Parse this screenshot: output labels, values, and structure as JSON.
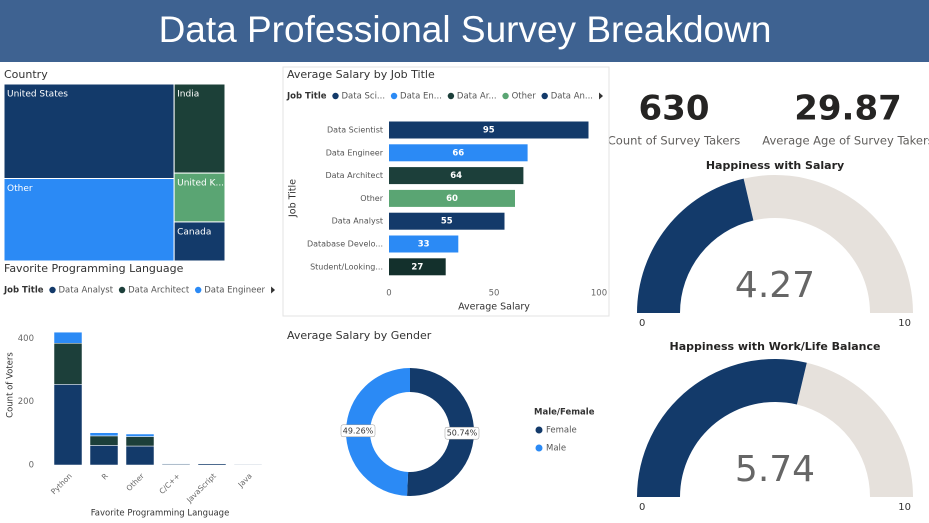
{
  "header": {
    "title": "Data Professional Survey Breakdown"
  },
  "cards": [
    {
      "value": 630,
      "label": "Count of Survey Takers"
    },
    {
      "value": 29.87,
      "label": "Average Age of Survey Takers"
    }
  ],
  "chart_data": [
    {
      "type": "treemap",
      "title": "Country",
      "categories": [
        "United States",
        "Other",
        "India",
        "United K...",
        "Canada"
      ],
      "values": [
        259,
        226,
        73,
        40,
        32
      ],
      "colors": [
        "#133a6a",
        "#2b8af5",
        "#1c4038",
        "#5aa573",
        "#133a6a"
      ]
    },
    {
      "type": "bar",
      "stacked": true,
      "title": "Favorite Programming Language",
      "legend_title": "Job Title",
      "categories": [
        "Python",
        "R",
        "Other",
        "C/C++",
        "JavaScript",
        "Java"
      ],
      "series": [
        {
          "name": "Data Analyst",
          "color": "#133a6a",
          "values": [
            255,
            62,
            60,
            3,
            4,
            2
          ]
        },
        {
          "name": "Data Architect",
          "color": "#1c3f3a",
          "values": [
            130,
            30,
            30,
            1,
            1,
            1
          ]
        },
        {
          "name": "Data Engineer",
          "color": "#2b8af5",
          "values": [
            35,
            10,
            8,
            1,
            1,
            0
          ]
        }
      ],
      "x_label": "Favorite Programming Language",
      "y_label": "Count of Voters",
      "ylim": [
        0,
        430
      ],
      "yticks": [
        0,
        200,
        400
      ]
    },
    {
      "type": "bar",
      "orientation": "horizontal",
      "title": "Average Salary by Job Title",
      "legend_title": "Job Title",
      "legend": [
        {
          "name": "Data Sci...",
          "color": "#133a6a"
        },
        {
          "name": "Data En...",
          "color": "#2b8af5"
        },
        {
          "name": "Data Ar...",
          "color": "#1c3f3a"
        },
        {
          "name": "Other",
          "color": "#5aa573"
        },
        {
          "name": "Data An...",
          "color": "#133a6a"
        }
      ],
      "categories": [
        "Data Scientist",
        "Data Engineer",
        "Data Architect",
        "Other",
        "Data Analyst",
        "Database Develo...",
        "Student/Looking..."
      ],
      "values": [
        95,
        66,
        64,
        60,
        55,
        33,
        27
      ],
      "colors": [
        "#133a6a",
        "#2b8af5",
        "#1c3f3a",
        "#5aa573",
        "#133a6a",
        "#2b8af5",
        "#13302c"
      ],
      "x_label": "Average Salary",
      "y_label": "Job Title",
      "xlim": [
        0,
        100
      ],
      "xticks": [
        0,
        50,
        100
      ]
    },
    {
      "type": "donut",
      "title": "Average Salary by Gender",
      "legend_title": "Male/Female",
      "categories": [
        "Female",
        "Male"
      ],
      "values": [
        50.74,
        49.26
      ],
      "value_labels": [
        "50.74%",
        "49.26%"
      ],
      "colors": [
        "#133a6a",
        "#2b8af5"
      ]
    },
    {
      "type": "gauge",
      "title": "Happiness with Salary",
      "value": 4.27,
      "ylim": [
        0,
        10
      ],
      "color": "#133a6a",
      "track_color": "#e6e1dc"
    },
    {
      "type": "gauge",
      "title": "Happiness with Work/Life Balance",
      "value": 5.74,
      "ylim": [
        0,
        10
      ],
      "color": "#133a6a",
      "track_color": "#e6e1dc"
    }
  ]
}
